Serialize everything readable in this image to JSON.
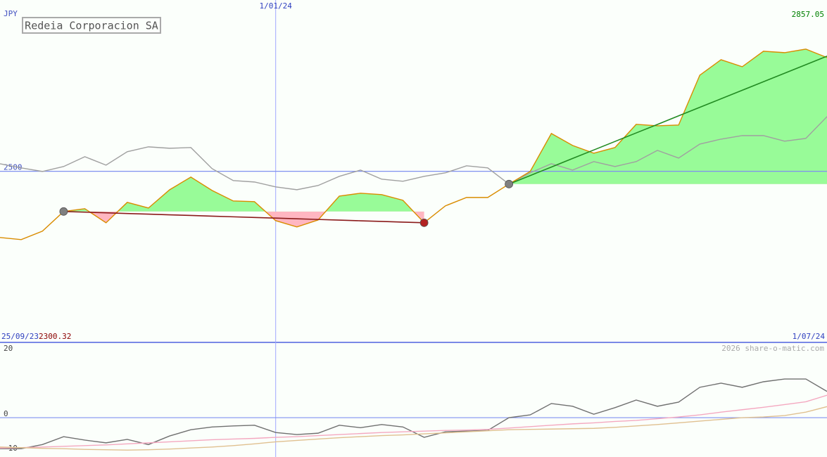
{
  "chart_data": [
    {
      "type": "line",
      "title": "Redeia Corporacion SA",
      "unit": "JPY",
      "categories": [
        "25/09/23",
        null,
        null,
        null,
        null,
        null,
        null,
        null,
        null,
        null,
        null,
        null,
        null,
        "1/01/24",
        null,
        null,
        null,
        null,
        null,
        null,
        null,
        null,
        null,
        null,
        null,
        null,
        null,
        null,
        null,
        null,
        null,
        null,
        null,
        null,
        null,
        null,
        null,
        null,
        null,
        "1/07/24"
      ],
      "ylim": [
        2000,
        2980
      ],
      "yticks": [
        2500
      ],
      "grid": true,
      "fill_above": "#98fb98",
      "fill_below": "#ffb6c1",
      "series": [
        {
          "kind": "average",
          "color": "#a0a0a0",
          "values": [
            2522.1,
            2509.8,
            2499.5,
            2513.9,
            2542.7,
            2518.0,
            2557.1,
            2571.4,
            2567.3,
            2569.4,
            2507.8,
            2472.8,
            2468.7,
            2454.4,
            2446.1,
            2458.5,
            2485.2,
            2503.6,
            2476.9,
            2470.8,
            2485.2,
            2495.4,
            2516.0,
            2509.8,
            2462.6,
            2495.4,
            2522.1,
            2503.6,
            2528.3,
            2513.9,
            2528.3,
            2561.2,
            2538.6,
            2579.6,
            2594.0,
            2604.3,
            2604.3,
            2587.9,
            2596.1,
            2659.8
          ]
        },
        {
          "kind": "price",
          "color": "#d98c00",
          "values": [
            2306.5,
            2300.32,
            2325.0,
            2382.5,
            2390.7,
            2349.6,
            2409.2,
            2392.7,
            2446.1,
            2483.1,
            2444.1,
            2413.3,
            2411.2,
            2355.8,
            2337.3,
            2357.8,
            2427.6,
            2435.9,
            2431.8,
            2415.3,
            2349.6,
            2398.9,
            2423.5,
            2423.5,
            2462.6,
            2499.5,
            2610.5,
            2575.5,
            2552.9,
            2569.4,
            2637.2,
            2633.0,
            2635.1,
            2780.9,
            2826.1,
            2805.6,
            2850.8,
            2846.7,
            2857.05,
            2832.3
          ]
        },
        {
          "kind": "trend",
          "color": "#8b1a1a",
          "markers": [
            "#808080",
            "#b22222"
          ],
          "values": [
            null,
            null,
            null,
            2382.5,
            2380.6,
            2378.6,
            2376.7,
            2374.8,
            2372.8,
            2370.9,
            2369.0,
            2367.0,
            2365.1,
            2363.2,
            2361.2,
            2359.3,
            2357.3,
            2355.4,
            2353.5,
            2351.5,
            2349.6,
            null,
            null,
            null,
            null,
            null,
            null,
            null,
            null,
            null,
            null,
            null,
            null,
            null,
            null,
            null,
            null,
            null,
            null,
            null
          ]
        },
        {
          "kind": "trend",
          "color": "#228b22",
          "markers": [
            "#808080"
          ],
          "values": [
            null,
            null,
            null,
            null,
            null,
            null,
            null,
            null,
            null,
            null,
            null,
            null,
            null,
            null,
            null,
            null,
            null,
            null,
            null,
            null,
            null,
            null,
            null,
            null,
            2462.6,
            2487.5,
            2512.4,
            2537.4,
            2562.3,
            2587.2,
            2612.1,
            2637.0,
            2662.0,
            2686.9,
            2711.8,
            2736.7,
            2761.6,
            2786.6,
            2811.5,
            2836.4
          ]
        }
      ],
      "annotations": [
        {
          "value": 2857.05,
          "color": "#008000",
          "position": "top-right"
        },
        {
          "value": 2300.32,
          "color": "#8b0000",
          "position": "bottom-left"
        }
      ]
    },
    {
      "type": "line",
      "watermark": "2026 share-o-matic.com",
      "ylim": [
        -11.4,
        21.4
      ],
      "yticks": [
        -10,
        0,
        20
      ],
      "zero_line": true,
      "series": [
        {
          "color": "#707070",
          "values": [
            -9.0,
            -9.0,
            -7.8,
            -5.5,
            -6.5,
            -7.3,
            -6.3,
            -7.8,
            -5.3,
            -3.5,
            -2.7,
            -2.4,
            -2.2,
            -4.3,
            -4.9,
            -4.5,
            -2.2,
            -2.9,
            -2.0,
            -2.7,
            -5.7,
            -4.1,
            -3.9,
            -3.7,
            0,
            0.8,
            4.1,
            3.3,
            1.0,
            2.9,
            5.1,
            3.3,
            4.5,
            8.8,
            10.0,
            8.8,
            10.4,
            11.2,
            11.2,
            7.6
          ]
        },
        {
          "color": "#f4a8c0",
          "values": [
            -8.8,
            -8.7,
            -8.5,
            -8.3,
            -8.1,
            -7.9,
            -7.6,
            -7.3,
            -7.0,
            -6.7,
            -6.4,
            -6.2,
            -6.0,
            -5.7,
            -5.5,
            -5.2,
            -4.9,
            -4.6,
            -4.3,
            -4.1,
            -3.9,
            -3.7,
            -3.6,
            -3.4,
            -3.0,
            -2.6,
            -2.2,
            -1.8,
            -1.5,
            -1.1,
            -0.8,
            -0.3,
            0.2,
            0.8,
            1.6,
            2.3,
            3.0,
            3.8,
            4.6,
            6.5
          ]
        },
        {
          "color": "#e0c090",
          "values": [
            -8.5,
            -8.7,
            -8.9,
            -9.0,
            -9.2,
            -9.3,
            -9.4,
            -9.3,
            -9.1,
            -8.8,
            -8.5,
            -8.1,
            -7.6,
            -7.0,
            -6.6,
            -6.2,
            -5.8,
            -5.5,
            -5.2,
            -5.0,
            -4.7,
            -4.4,
            -4.1,
            -3.8,
            -3.5,
            -3.4,
            -3.3,
            -3.2,
            -3.1,
            -2.8,
            -2.4,
            -2.0,
            -1.5,
            -1.0,
            -0.5,
            0,
            0.2,
            0.6,
            1.6,
            3.2
          ]
        }
      ]
    }
  ]
}
